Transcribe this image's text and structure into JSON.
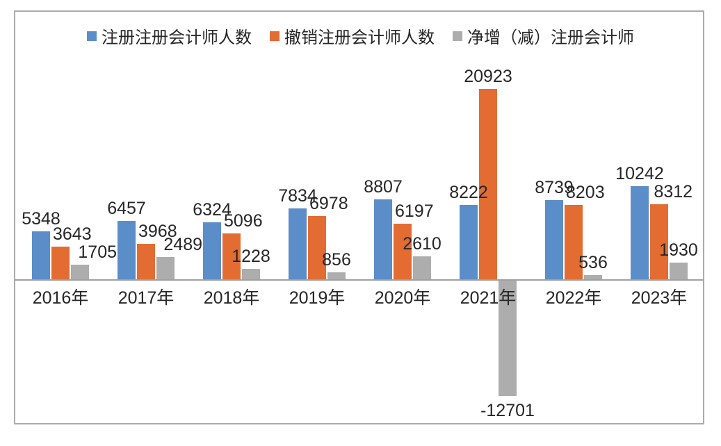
{
  "chart_data": {
    "type": "bar",
    "title": "",
    "xlabel": "",
    "ylabel": "",
    "categories": [
      "2016年",
      "2017年",
      "2018年",
      "2019年",
      "2020年",
      "2021年",
      "2022年",
      "2023年"
    ],
    "series": [
      {
        "name": "注册注册会计师人数",
        "color": "#5B8DC9",
        "values": [
          5348,
          6457,
          6324,
          7834,
          8807,
          8222,
          8739,
          10242
        ]
      },
      {
        "name": "撤销注册会计师人数",
        "color": "#E26C32",
        "values": [
          3643,
          3968,
          5096,
          6978,
          6197,
          20923,
          8203,
          8312
        ]
      },
      {
        "name": "净增（减）注册会计师",
        "color": "#ADADAD",
        "values": [
          1705,
          2489,
          1228,
          856,
          2610,
          -12701,
          536,
          1930
        ]
      }
    ],
    "legend_position": "top",
    "grid": false,
    "data_labels": true,
    "ylim": [
      -14000,
      22000
    ]
  },
  "colors": {
    "axis_line": "#A0A0A0",
    "frame_border": "#ABABAB",
    "text": "#262626",
    "background": "#FFFFFF"
  }
}
